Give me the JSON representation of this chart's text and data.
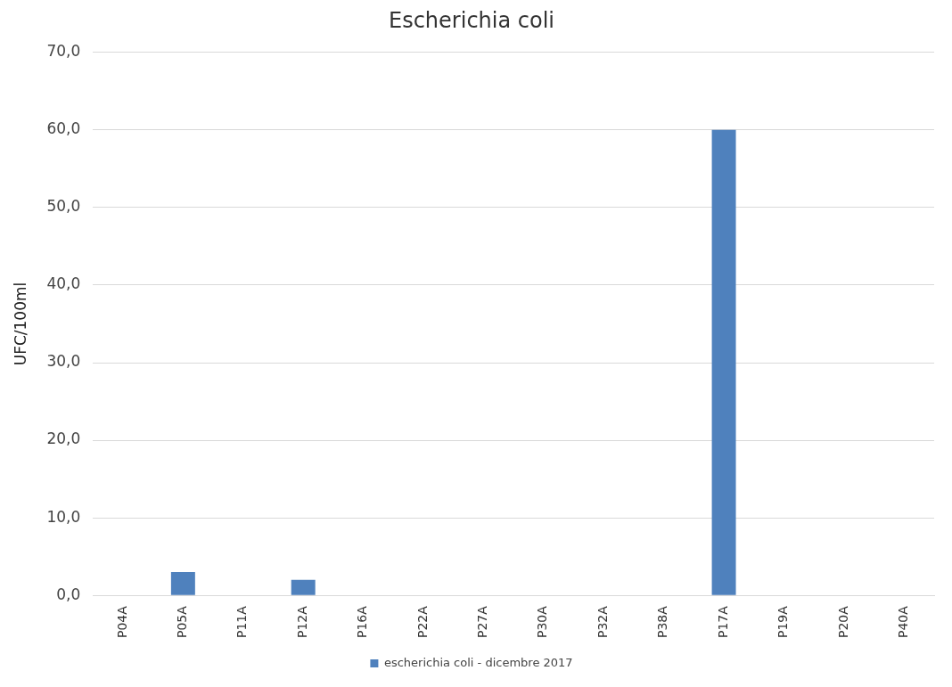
{
  "chart_data": {
    "type": "bar",
    "title": "Escherichia coli",
    "ylabel": "UFC/100ml",
    "categories": [
      "P04A",
      "P05A",
      "P11A",
      "P12A",
      "P16A",
      "P22A",
      "P27A",
      "P30A",
      "P32A",
      "P38A",
      "P17A",
      "P19A",
      "P20A",
      "P40A"
    ],
    "series": [
      {
        "name": "escherichia coli - dicembre 2017",
        "color": "#4f81bd",
        "values": [
          0,
          3,
          0,
          2,
          0,
          0,
          0,
          0,
          0,
          0,
          60,
          0,
          0,
          0
        ]
      }
    ],
    "ylim": [
      0,
      70
    ],
    "yticks": [
      {
        "value": 0,
        "label": "0,0"
      },
      {
        "value": 10,
        "label": "10,0"
      },
      {
        "value": 20,
        "label": "20,0"
      },
      {
        "value": 30,
        "label": "30,0"
      },
      {
        "value": 40,
        "label": "40,0"
      },
      {
        "value": 50,
        "label": "50,0"
      },
      {
        "value": 60,
        "label": "60,0"
      },
      {
        "value": 70,
        "label": "70,0"
      }
    ],
    "grid": "y",
    "legend": "bottom"
  }
}
